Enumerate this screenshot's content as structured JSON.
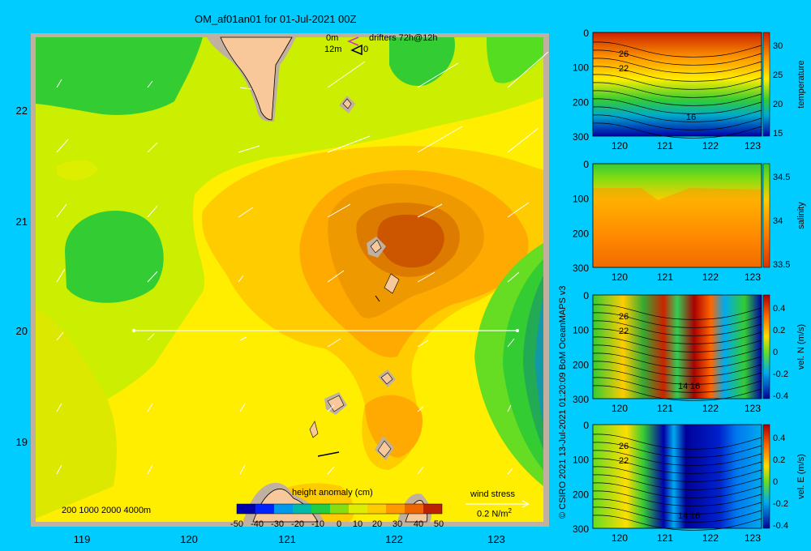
{
  "title": "OM_af01an01 for 01-Jul-2021 00Z",
  "legend_drifters": {
    "line1_depth": "0m",
    "line1_label": "drifters 72h@12h",
    "line2_depth": "12m",
    "line2_marker": "0",
    "colors": {
      "surface": "#cc33cc",
      "subsurface": "#000000"
    }
  },
  "map": {
    "lon_ticks": [
      "119",
      "120",
      "121",
      "122",
      "123"
    ],
    "lat_ticks": [
      "22",
      "21",
      "20",
      "19"
    ],
    "bathymetry_legend": "200  1000  2000  4000m",
    "colorbar_title": "height anomaly (cm)",
    "colorbar_ticks": [
      "-50",
      "-40",
      "-30",
      "-20",
      "-10",
      "0",
      "10",
      "20",
      "30",
      "40",
      "50"
    ],
    "wind_label": "wind stress",
    "wind_scale": "0.2 N/m",
    "wind_scale_exp": "2",
    "colors": {
      "land": "#f9c89a",
      "shelf": "#c0b0a0",
      "background": "#00ccff"
    }
  },
  "side_panels": [
    {
      "id": "temperature",
      "colorbar_label": "temperature",
      "y_ticks": [
        "0",
        "100",
        "200",
        "300"
      ],
      "x_ticks": [
        "120",
        "121",
        "122",
        "123"
      ],
      "cb_ticks": [
        "30",
        "25",
        "20",
        "15"
      ],
      "contour_labels": [
        "26",
        "22",
        "16"
      ]
    },
    {
      "id": "salinity",
      "colorbar_label": "salinity",
      "y_ticks": [
        "0",
        "100",
        "200",
        "300"
      ],
      "x_ticks": [
        "120",
        "121",
        "122",
        "123"
      ],
      "cb_ticks": [
        "34.5",
        "34",
        "33.5"
      ],
      "contour_labels": []
    },
    {
      "id": "vel-n",
      "colorbar_label": "vel. N (m/s)",
      "y_ticks": [
        "0",
        "100",
        "200",
        "300"
      ],
      "x_ticks": [
        "120",
        "121",
        "122",
        "123"
      ],
      "cb_ticks": [
        "0.4",
        "0.2",
        "0",
        "-0.2",
        "-0.4"
      ],
      "contour_labels": [
        "26",
        "22",
        "14",
        "16"
      ]
    },
    {
      "id": "vel-e",
      "colorbar_label": "vel. E (m/s)",
      "y_ticks": [
        "0",
        "100",
        "200",
        "300"
      ],
      "x_ticks": [
        "120",
        "121",
        "122",
        "123"
      ],
      "cb_ticks": [
        "0.4",
        "0.2",
        "0",
        "-0.2",
        "-0.4"
      ],
      "contour_labels": [
        "26",
        "22",
        "14",
        "16"
      ]
    }
  ],
  "credit": "© CSIRO 2021   13-Jul-2021 01:20:09 BoM OceanMAPS v3"
}
